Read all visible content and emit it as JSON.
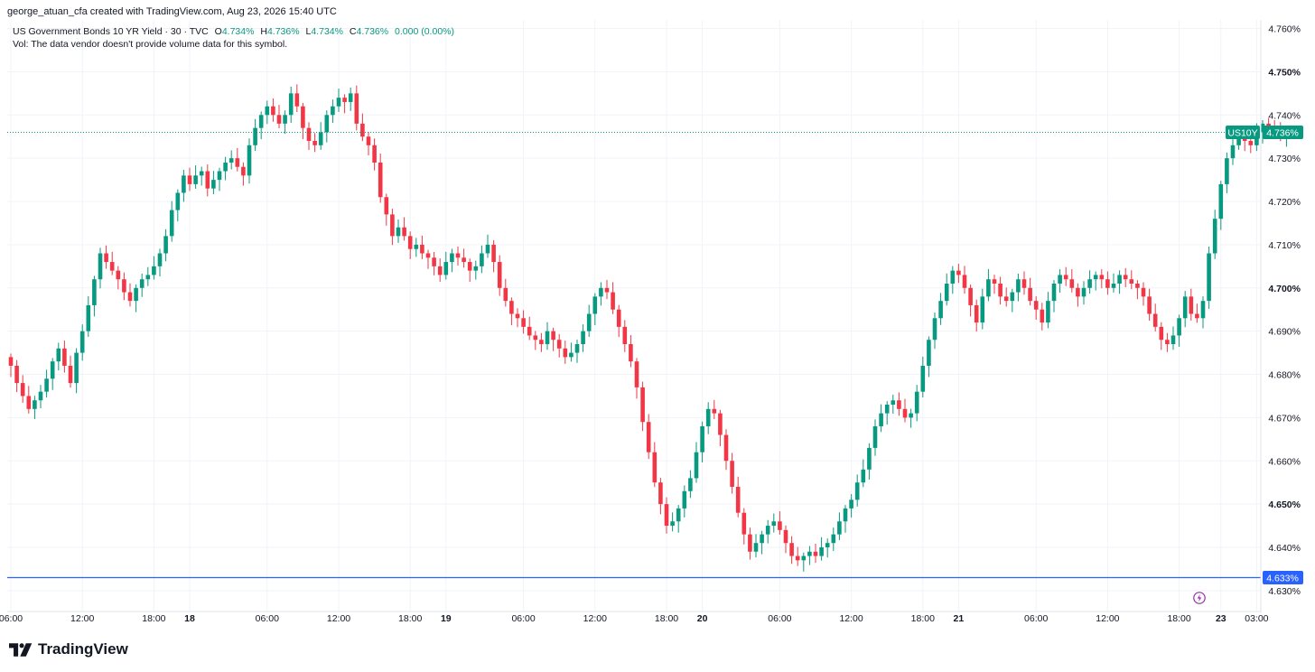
{
  "header": {
    "created_by": "george_atuan_cfa created with TradingView.com, Aug 23, 2026 15:40 UTC"
  },
  "legend": {
    "symbol": "US Government Bonds 10 YR Yield · 30 · TVC",
    "o_label": "O",
    "o_value": "4.734%",
    "h_label": "H",
    "h_value": "4.736%",
    "l_label": "L",
    "l_value": "4.734%",
    "c_label": "C",
    "c_value": "4.736%",
    "change": "0.000 (0.00%)",
    "vol_note": "Vol: The data vendor doesn't provide volume data for this symbol."
  },
  "footer": {
    "brand": "TradingView"
  },
  "colors": {
    "up": "#089981",
    "down": "#f23645",
    "price_line": "#089981",
    "level_line": "#2962ff",
    "grid": "#f0f3fa"
  },
  "chart_data": {
    "type": "candlestick",
    "symbol": "US10Y",
    "interval": "30",
    "ylim": [
      4.626,
      4.762
    ],
    "y_ticks": [
      "4.760%",
      "4.750%",
      "4.740%",
      "4.730%",
      "4.720%",
      "4.710%",
      "4.700%",
      "4.690%",
      "4.680%",
      "4.670%",
      "4.660%",
      "4.650%",
      "4.640%",
      "4.630%"
    ],
    "y_ticks_bold": [
      "4.750%",
      "4.700%",
      "4.650%"
    ],
    "x_ticks": [
      {
        "label": "06:00",
        "bold": false,
        "i": 0
      },
      {
        "label": "12:00",
        "bold": false,
        "i": 12
      },
      {
        "label": "18:00",
        "bold": false,
        "i": 24
      },
      {
        "label": "18",
        "bold": true,
        "i": 30
      },
      {
        "label": "06:00",
        "bold": false,
        "i": 43
      },
      {
        "label": "12:00",
        "bold": false,
        "i": 55
      },
      {
        "label": "18:00",
        "bold": false,
        "i": 67
      },
      {
        "label": "19",
        "bold": true,
        "i": 73
      },
      {
        "label": "06:00",
        "bold": false,
        "i": 86
      },
      {
        "label": "12:00",
        "bold": false,
        "i": 98
      },
      {
        "label": "18:00",
        "bold": false,
        "i": 110
      },
      {
        "label": "20",
        "bold": true,
        "i": 116
      },
      {
        "label": "06:00",
        "bold": false,
        "i": 129
      },
      {
        "label": "12:00",
        "bold": false,
        "i": 141
      },
      {
        "label": "18:00",
        "bold": false,
        "i": 153
      },
      {
        "label": "21",
        "bold": true,
        "i": 159
      },
      {
        "label": "06:00",
        "bold": false,
        "i": 172
      },
      {
        "label": "12:00",
        "bold": false,
        "i": 184
      },
      {
        "label": "18:00",
        "bold": false,
        "i": 196
      },
      {
        "label": "23",
        "bold": true,
        "i": 203
      },
      {
        "label": "03:00",
        "bold": false,
        "i": 209
      }
    ],
    "last_price": {
      "label": "US10Y",
      "value": "4.736%",
      "y": 4.736
    },
    "horizontal_line": {
      "value": "4.633%",
      "y": 4.633
    },
    "closes": [
      4.682,
      4.678,
      4.675,
      4.672,
      4.674,
      4.676,
      4.679,
      4.683,
      4.686,
      4.682,
      4.678,
      4.685,
      4.69,
      4.696,
      4.702,
      4.708,
      4.706,
      4.704,
      4.702,
      4.699,
      4.697,
      4.7,
      4.702,
      4.703,
      4.705,
      4.708,
      4.712,
      4.718,
      4.722,
      4.726,
      4.724,
      4.726,
      4.727,
      4.723,
      4.725,
      4.727,
      4.729,
      4.73,
      4.728,
      4.726,
      4.733,
      4.737,
      4.74,
      4.742,
      4.74,
      4.738,
      4.74,
      4.745,
      4.742,
      4.737,
      4.734,
      4.733,
      4.736,
      4.74,
      4.742,
      4.744,
      4.743,
      4.745,
      4.738,
      4.735,
      4.733,
      4.729,
      4.721,
      4.717,
      4.712,
      4.714,
      4.712,
      4.709,
      4.71,
      4.708,
      4.707,
      4.705,
      4.703,
      4.706,
      4.708,
      4.707,
      4.706,
      4.704,
      4.705,
      4.708,
      4.71,
      4.706,
      4.7,
      4.697,
      4.694,
      4.693,
      4.691,
      4.689,
      4.688,
      4.687,
      4.69,
      4.688,
      4.686,
      4.684,
      4.685,
      4.687,
      4.69,
      4.694,
      4.698,
      4.7,
      4.699,
      4.695,
      4.691,
      4.687,
      4.683,
      4.677,
      4.669,
      4.662,
      4.655,
      4.65,
      4.645,
      4.646,
      4.649,
      4.653,
      4.656,
      4.662,
      4.668,
      4.672,
      4.671,
      4.666,
      4.66,
      4.654,
      4.648,
      4.643,
      4.639,
      4.641,
      4.643,
      4.645,
      4.646,
      4.644,
      4.641,
      4.638,
      4.637,
      4.638,
      4.639,
      4.638,
      4.64,
      4.641,
      4.643,
      4.646,
      4.649,
      4.651,
      4.655,
      4.658,
      4.663,
      4.668,
      4.671,
      4.673,
      4.674,
      4.672,
      4.67,
      4.671,
      4.676,
      4.682,
      4.688,
      4.693,
      4.697,
      4.701,
      4.704,
      4.703,
      4.7,
      4.696,
      4.692,
      4.698,
      4.702,
      4.701,
      4.698,
      4.697,
      4.699,
      4.702,
      4.7,
      4.697,
      4.695,
      4.692,
      4.697,
      4.701,
      4.703,
      4.702,
      4.7,
      4.698,
      4.7,
      4.702,
      4.703,
      4.702,
      4.7,
      4.701,
      4.703,
      4.702,
      4.701,
      4.7,
      4.698,
      4.694,
      4.691,
      4.688,
      4.687,
      4.689,
      4.693,
      4.698,
      4.694,
      4.693,
      4.697,
      4.708,
      4.716,
      4.724,
      4.73,
      4.733,
      4.735,
      4.734,
      4.733,
      4.736,
      4.738,
      4.737,
      4.736,
      4.735,
      4.736
    ]
  }
}
